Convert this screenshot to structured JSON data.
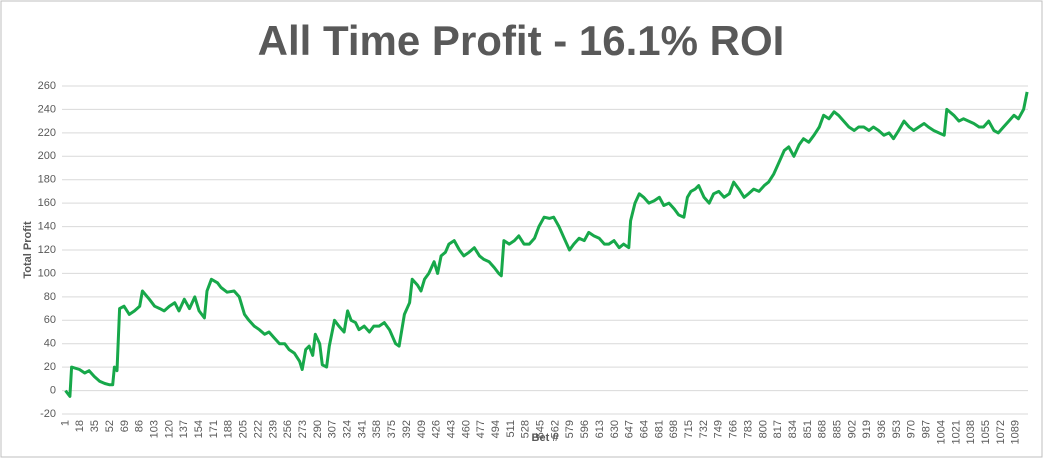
{
  "chart_data": {
    "type": "line",
    "title": "All Time Profit - 16.1% ROI",
    "x_label": "Bet #",
    "y_label": "Total Profit",
    "xlim": [
      -3,
      1103
    ],
    "ylim": [
      -20,
      260
    ],
    "xticks": [
      1,
      18,
      35,
      52,
      69,
      86,
      103,
      120,
      137,
      154,
      171,
      188,
      205,
      222,
      239,
      256,
      273,
      290,
      307,
      324,
      341,
      358,
      375,
      392,
      409,
      426,
      443,
      460,
      477,
      494,
      511,
      528,
      545,
      562,
      579,
      596,
      613,
      630,
      647,
      664,
      681,
      698,
      715,
      732,
      749,
      766,
      783,
      800,
      817,
      834,
      851,
      868,
      885,
      902,
      919,
      936,
      953,
      970,
      987,
      1004,
      1021,
      1038,
      1055,
      1072,
      1089
    ],
    "yticks": [
      -20,
      0,
      20,
      40,
      60,
      80,
      100,
      120,
      140,
      160,
      180,
      200,
      220,
      240,
      260
    ],
    "grid": true,
    "series": [
      {
        "name": "Total Profit",
        "color": "#17a84a",
        "x": [
          1,
          6,
          8,
          17,
          23,
          28,
          34,
          40,
          46,
          51,
          55,
          57,
          60,
          63,
          68,
          74,
          80,
          86,
          89,
          97,
          103,
          109,
          114,
          120,
          126,
          131,
          137,
          143,
          149,
          154,
          160,
          163,
          168,
          175,
          179,
          186,
          194,
          200,
          206,
          211,
          217,
          223,
          229,
          234,
          240,
          246,
          252,
          257,
          263,
          269,
          272,
          276,
          280,
          284,
          287,
          292,
          295,
          300,
          303,
          309,
          314,
          320,
          324,
          328,
          333,
          337,
          343,
          349,
          354,
          360,
          366,
          372,
          379,
          383,
          389,
          395,
          398,
          404,
          408,
          412,
          417,
          423,
          427,
          431,
          436,
          440,
          446,
          452,
          457,
          463,
          469,
          475,
          480,
          486,
          492,
          497,
          500,
          503,
          509,
          515,
          520,
          526,
          532,
          538,
          543,
          549,
          555,
          560,
          566,
          572,
          578,
          583,
          589,
          595,
          600,
          606,
          612,
          618,
          623,
          629,
          635,
          640,
          646,
          648,
          653,
          658,
          663,
          669,
          675,
          681,
          686,
          692,
          698,
          703,
          709,
          713,
          717,
          722,
          726,
          732,
          738,
          743,
          749,
          755,
          761,
          766,
          772,
          778,
          783,
          789,
          795,
          801,
          806,
          812,
          818,
          824,
          829,
          835,
          841,
          846,
          852,
          858,
          864,
          869,
          875,
          881,
          886,
          892,
          898,
          904,
          909,
          915,
          921,
          926,
          932,
          938,
          944,
          949,
          955,
          961,
          967,
          972,
          978,
          984,
          989,
          995,
          1001,
          1007,
          1010,
          1018,
          1024,
          1029,
          1035,
          1041,
          1047,
          1052,
          1058,
          1064,
          1069,
          1075,
          1081,
          1087,
          1092,
          1098,
          1102
        ],
        "values": [
          0,
          -5,
          20,
          18,
          15,
          17,
          12,
          8,
          6,
          5,
          5,
          20,
          17,
          70,
          72,
          65,
          68,
          72,
          85,
          78,
          72,
          70,
          68,
          72,
          75,
          68,
          78,
          70,
          80,
          68,
          62,
          85,
          95,
          92,
          88,
          84,
          85,
          80,
          65,
          60,
          55,
          52,
          48,
          50,
          45,
          40,
          40,
          35,
          32,
          25,
          18,
          35,
          38,
          30,
          48,
          40,
          22,
          20,
          38,
          60,
          55,
          50,
          68,
          60,
          58,
          52,
          55,
          50,
          55,
          55,
          58,
          52,
          40,
          38,
          65,
          75,
          95,
          90,
          85,
          95,
          100,
          110,
          100,
          115,
          118,
          125,
          128,
          120,
          115,
          118,
          122,
          115,
          112,
          110,
          105,
          100,
          98,
          128,
          125,
          128,
          132,
          125,
          125,
          130,
          140,
          148,
          147,
          148,
          140,
          130,
          120,
          125,
          130,
          128,
          135,
          132,
          130,
          125,
          125,
          128,
          122,
          125,
          122,
          145,
          160,
          168,
          165,
          160,
          162,
          165,
          158,
          160,
          155,
          150,
          148,
          165,
          170,
          172,
          175,
          165,
          160,
          168,
          170,
          165,
          168,
          178,
          172,
          165,
          168,
          172,
          170,
          175,
          178,
          185,
          195,
          205,
          208,
          200,
          210,
          215,
          212,
          218,
          225,
          235,
          232,
          238,
          235,
          230,
          225,
          222,
          225,
          225,
          222,
          225,
          222,
          218,
          220,
          215,
          222,
          230,
          225,
          222,
          225,
          228,
          225,
          222,
          220,
          218,
          240,
          235,
          230,
          232,
          230,
          228,
          225,
          225,
          230,
          222,
          220,
          225,
          230,
          235,
          232,
          240,
          255
        ]
      }
    ]
  }
}
